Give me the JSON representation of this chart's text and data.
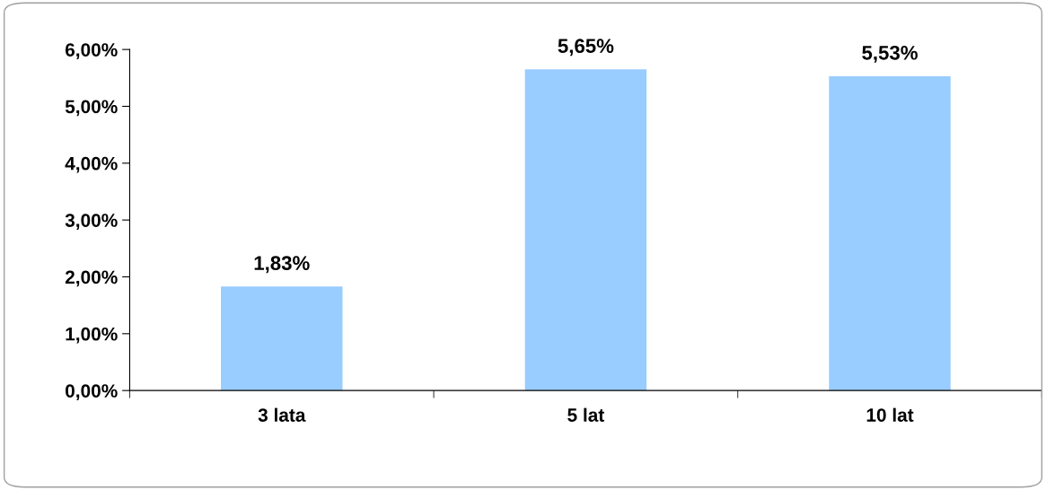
{
  "chart_data": {
    "type": "bar",
    "categories": [
      "3 lata",
      "5 lat",
      "10 lat"
    ],
    "values": [
      1.83,
      5.65,
      5.53
    ],
    "value_labels": [
      "1,83%",
      "5,65%",
      "5,53%"
    ],
    "color": "#99ccff",
    "ylim": [
      0,
      6
    ],
    "yticks": [
      {
        "value": 0,
        "label": "0,00%"
      },
      {
        "value": 1,
        "label": "1,00%"
      },
      {
        "value": 2,
        "label": "2,00%"
      },
      {
        "value": 3,
        "label": "3,00%"
      },
      {
        "value": 4,
        "label": "4,00%"
      },
      {
        "value": 5,
        "label": "5,00%"
      },
      {
        "value": 6,
        "label": "6,00%"
      }
    ],
    "grid": false,
    "legend": false
  }
}
